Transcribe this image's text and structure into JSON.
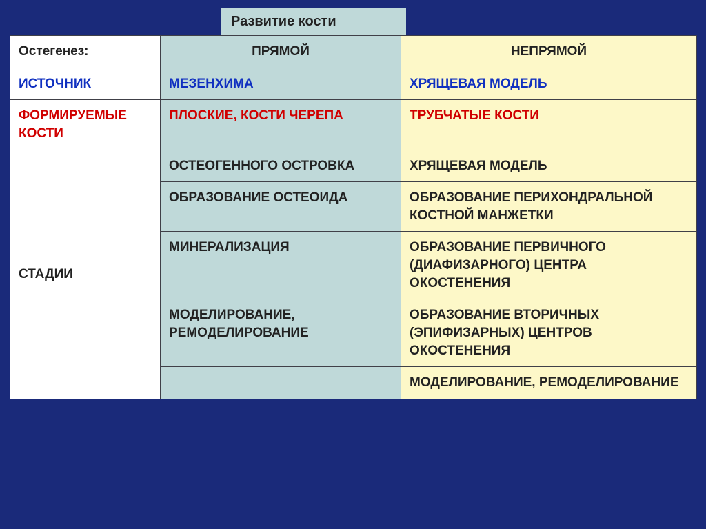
{
  "title": "Развитие кости",
  "header": {
    "label": "Остегенез:",
    "direct": "ПРЯМОЙ",
    "indirect": "НЕПРЯМОЙ"
  },
  "source": {
    "label": "ИСТОЧНИК",
    "direct": "МЕЗЕНХИМА",
    "indirect": "ХРЯЩЕВАЯ МОДЕЛЬ"
  },
  "formed": {
    "label": "ФОРМИРУЕМЫЕ КОСТИ",
    "direct": "ПЛОСКИЕ, КОСТИ ЧЕРЕПА",
    "indirect": "ТРУБЧАТЫЕ КОСТИ"
  },
  "stages": {
    "label": "СТАДИИ",
    "rows": [
      {
        "direct": "ОСТЕОГЕННОГО ОСТРОВКА",
        "indirect": "ХРЯЩЕВАЯ МОДЕЛЬ"
      },
      {
        "direct": "ОБРАЗОВАНИЕ ОСТЕОИДА",
        "indirect": "ОБРАЗОВАНИЕ ПЕРИХОНДРАЛЬНОЙ КОСТНОЙ МАНЖЕТКИ"
      },
      {
        "direct": "МИНЕРАЛИЗАЦИЯ",
        "indirect": "ОБРАЗОВАНИЕ ПЕРВИЧНОГО (ДИАФИЗАРНОГО) ЦЕНТРА ОКОСТЕНЕНИЯ"
      },
      {
        "direct": "МОДЕЛИРОВАНИЕ, РЕМОДЕЛИРОВАНИЕ",
        "indirect": "ОБРАЗОВАНИЕ ВТОРИЧНЫХ (ЭПИФИЗАРНЫХ) ЦЕНТРОВ ОКОСТЕНЕНИЯ"
      },
      {
        "direct": "",
        "indirect": "МОДЕЛИРОВАНИЕ, РЕМОДЕЛИРОВАНИЕ"
      }
    ]
  },
  "colors": {
    "page_bg": "#1a2a7a",
    "teal": "#bfd9d9",
    "cream": "#fdf8c8",
    "white": "#ffffff",
    "border": "#404048",
    "text_black": "#222222",
    "text_blue": "#1030c0",
    "text_red": "#d00000"
  }
}
